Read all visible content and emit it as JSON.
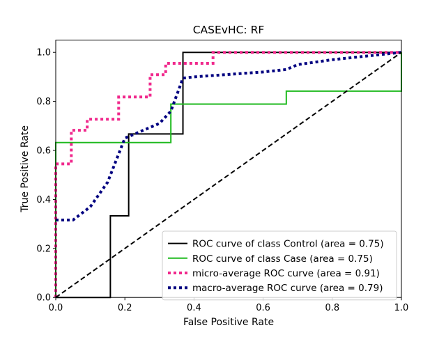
{
  "chart_data": {
    "type": "line",
    "title": "CASEvHC: RF",
    "xlabel": "False Positive Rate",
    "ylabel": "True Positive Rate",
    "xlim": [
      0.0,
      1.0
    ],
    "ylim": [
      0.0,
      1.05
    ],
    "x_ticks": [
      0.0,
      0.2,
      0.4,
      0.6,
      0.8,
      1.0
    ],
    "y_ticks": [
      0.0,
      0.2,
      0.4,
      0.6,
      0.8,
      1.0
    ],
    "x_tick_labels": [
      "0.0",
      "0.2",
      "0.4",
      "0.6",
      "0.8",
      "1.0"
    ],
    "y_tick_labels": [
      "0.0",
      "0.2",
      "0.4",
      "0.6",
      "0.8",
      "1.0"
    ],
    "grid": false,
    "legend_placement": "lower-right",
    "series": [
      {
        "name": "ROC curve of class  Control (area = 0.75)",
        "color": "#000000",
        "style": "solid",
        "x": [
          0.0,
          0.158,
          0.158,
          0.211,
          0.211,
          0.368,
          0.368,
          1.0
        ],
        "y": [
          0.0,
          0.0,
          0.333,
          0.333,
          0.667,
          0.667,
          1.0,
          1.0
        ]
      },
      {
        "name": "ROC curve of class Case (area = 0.75)",
        "color": "#1fba1f",
        "style": "solid",
        "x": [
          0.0,
          0.0,
          0.333,
          0.333,
          0.667,
          0.667,
          1.0,
          1.0
        ],
        "y": [
          0.0,
          0.632,
          0.632,
          0.789,
          0.789,
          0.842,
          0.842,
          1.0
        ]
      },
      {
        "name": "micro-average ROC curve (area = 0.91)",
        "color": "#f0288c",
        "style": "dotted",
        "x": [
          0.0,
          0.0,
          0.045,
          0.045,
          0.091,
          0.091,
          0.182,
          0.182,
          0.273,
          0.273,
          0.318,
          0.318,
          0.455,
          0.455,
          1.0
        ],
        "y": [
          0.0,
          0.545,
          0.545,
          0.682,
          0.682,
          0.727,
          0.727,
          0.818,
          0.818,
          0.909,
          0.909,
          0.955,
          0.955,
          1.0,
          1.0
        ]
      },
      {
        "name": "macro-average ROC curve (area = 0.79)",
        "color": "#000080",
        "style": "dotted",
        "x": [
          0.0,
          0.05,
          0.1,
          0.15,
          0.2,
          0.25,
          0.3,
          0.333,
          0.368,
          0.4,
          0.5,
          0.6,
          0.667,
          0.7,
          0.8,
          0.9,
          1.0
        ],
        "y": [
          0.316,
          0.316,
          0.37,
          0.47,
          0.65,
          0.68,
          0.71,
          0.76,
          0.895,
          0.9,
          0.91,
          0.92,
          0.93,
          0.95,
          0.97,
          0.985,
          1.0
        ]
      },
      {
        "name": "",
        "color": "#000000",
        "style": "dashed",
        "x": [
          0.0,
          1.0
        ],
        "y": [
          0.0,
          1.0
        ]
      }
    ]
  }
}
